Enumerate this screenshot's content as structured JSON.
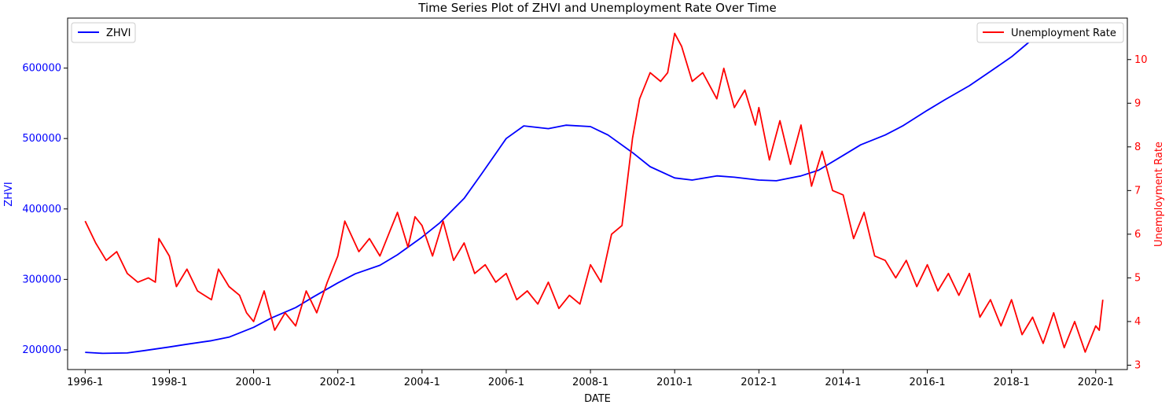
{
  "chart_data": {
    "type": "line",
    "title": "Time Series Plot of ZHVI and Unemployment Rate Over Time",
    "xlabel": "DATE",
    "ylabel_left": "ZHVI",
    "ylabel_right": "Unemployment Rate",
    "x_ticks": [
      "1996-1",
      "1998-1",
      "2000-1",
      "2002-1",
      "2004-1",
      "2006-1",
      "2008-1",
      "2010-1",
      "2012-1",
      "2014-1",
      "2016-1",
      "2018-1",
      "2020-1"
    ],
    "y_left_ticks": [
      "200000",
      "300000",
      "400000",
      "500000",
      "600000"
    ],
    "y_right_ticks": [
      "3",
      "4",
      "5",
      "6",
      "7",
      "8",
      "9",
      "10"
    ],
    "x_range": [
      "1995-08",
      "2020-10"
    ],
    "ylim_left": [
      172000,
      671000
    ],
    "ylim_right": [
      2.9,
      10.95
    ],
    "grid": false,
    "legend_left": "top-left",
    "legend_right": "top-right",
    "colors": {
      "zhvi": "#0000ff",
      "unemployment": "#ff0000"
    },
    "series": [
      {
        "name": "ZHVI",
        "axis": "left",
        "points": [
          [
            "1996-01",
            196500
          ],
          [
            "1996-06",
            195000
          ],
          [
            "1997-01",
            195500
          ],
          [
            "1997-06",
            199000
          ],
          [
            "1998-01",
            204000
          ],
          [
            "1998-06",
            208000
          ],
          [
            "1999-01",
            213000
          ],
          [
            "1999-06",
            218000
          ],
          [
            "2000-01",
            232000
          ],
          [
            "2000-06",
            245000
          ],
          [
            "2001-01",
            260000
          ],
          [
            "2001-06",
            275000
          ],
          [
            "2002-01",
            295000
          ],
          [
            "2002-06",
            308000
          ],
          [
            "2003-01",
            320000
          ],
          [
            "2003-06",
            335000
          ],
          [
            "2004-01",
            360000
          ],
          [
            "2004-06",
            380000
          ],
          [
            "2005-01",
            415000
          ],
          [
            "2005-06",
            450000
          ],
          [
            "2006-01",
            500000
          ],
          [
            "2006-06",
            518000
          ],
          [
            "2007-01",
            514000
          ],
          [
            "2007-06",
            519000
          ],
          [
            "2008-01",
            517000
          ],
          [
            "2008-06",
            505000
          ],
          [
            "2009-01",
            480000
          ],
          [
            "2009-06",
            460000
          ],
          [
            "2010-01",
            444000
          ],
          [
            "2010-06",
            441000
          ],
          [
            "2011-01",
            447000
          ],
          [
            "2011-06",
            445000
          ],
          [
            "2012-01",
            441000
          ],
          [
            "2012-06",
            440000
          ],
          [
            "2013-01",
            447000
          ],
          [
            "2013-06",
            455000
          ],
          [
            "2014-01",
            476000
          ],
          [
            "2014-06",
            491000
          ],
          [
            "2015-01",
            505000
          ],
          [
            "2015-06",
            518000
          ],
          [
            "2016-01",
            540000
          ],
          [
            "2016-06",
            555000
          ],
          [
            "2017-01",
            575000
          ],
          [
            "2017-06",
            592000
          ],
          [
            "2018-01",
            616000
          ],
          [
            "2018-06",
            637000
          ],
          [
            "2019-01",
            655000
          ],
          [
            "2019-06",
            657000
          ],
          [
            "2020-01",
            656000
          ],
          [
            "2020-03",
            657000
          ]
        ]
      },
      {
        "name": "Unemployment Rate",
        "axis": "right",
        "points": [
          [
            "1996-01",
            6.3
          ],
          [
            "1996-04",
            5.8
          ],
          [
            "1996-07",
            5.4
          ],
          [
            "1996-10",
            5.6
          ],
          [
            "1997-01",
            5.1
          ],
          [
            "1997-04",
            4.9
          ],
          [
            "1997-07",
            5.0
          ],
          [
            "1997-09",
            4.9
          ],
          [
            "1997-10",
            5.9
          ],
          [
            "1998-01",
            5.5
          ],
          [
            "1998-03",
            4.8
          ],
          [
            "1998-06",
            5.2
          ],
          [
            "1998-09",
            4.7
          ],
          [
            "1999-01",
            4.5
          ],
          [
            "1999-03",
            5.2
          ],
          [
            "1999-06",
            4.8
          ],
          [
            "1999-09",
            4.6
          ],
          [
            "1999-11",
            4.2
          ],
          [
            "2000-01",
            4.0
          ],
          [
            "2000-04",
            4.7
          ],
          [
            "2000-07",
            3.8
          ],
          [
            "2000-10",
            4.2
          ],
          [
            "2001-01",
            3.9
          ],
          [
            "2001-04",
            4.7
          ],
          [
            "2001-07",
            4.2
          ],
          [
            "2001-10",
            4.9
          ],
          [
            "2002-01",
            5.5
          ],
          [
            "2002-03",
            6.3
          ],
          [
            "2002-07",
            5.6
          ],
          [
            "2002-10",
            5.9
          ],
          [
            "2003-01",
            5.5
          ],
          [
            "2003-04",
            6.1
          ],
          [
            "2003-06",
            6.5
          ],
          [
            "2003-09",
            5.7
          ],
          [
            "2003-11",
            6.4
          ],
          [
            "2004-01",
            6.2
          ],
          [
            "2004-04",
            5.5
          ],
          [
            "2004-07",
            6.3
          ],
          [
            "2004-10",
            5.4
          ],
          [
            "2005-01",
            5.8
          ],
          [
            "2005-04",
            5.1
          ],
          [
            "2005-07",
            5.3
          ],
          [
            "2005-10",
            4.9
          ],
          [
            "2006-01",
            5.1
          ],
          [
            "2006-04",
            4.5
          ],
          [
            "2006-07",
            4.7
          ],
          [
            "2006-10",
            4.4
          ],
          [
            "2007-01",
            4.9
          ],
          [
            "2007-04",
            4.3
          ],
          [
            "2007-07",
            4.6
          ],
          [
            "2007-10",
            4.4
          ],
          [
            "2008-01",
            5.3
          ],
          [
            "2008-04",
            4.9
          ],
          [
            "2008-07",
            6.0
          ],
          [
            "2008-10",
            6.2
          ],
          [
            "2009-01",
            8.2
          ],
          [
            "2009-03",
            9.1
          ],
          [
            "2009-06",
            9.7
          ],
          [
            "2009-09",
            9.5
          ],
          [
            "2009-11",
            9.7
          ],
          [
            "2010-01",
            10.6
          ],
          [
            "2010-03",
            10.3
          ],
          [
            "2010-06",
            9.5
          ],
          [
            "2010-09",
            9.7
          ],
          [
            "2011-01",
            9.1
          ],
          [
            "2011-03",
            9.8
          ],
          [
            "2011-06",
            8.9
          ],
          [
            "2011-09",
            9.3
          ],
          [
            "2011-12",
            8.5
          ],
          [
            "2012-01",
            8.9
          ],
          [
            "2012-04",
            7.7
          ],
          [
            "2012-07",
            8.6
          ],
          [
            "2012-10",
            7.6
          ],
          [
            "2013-01",
            8.5
          ],
          [
            "2013-04",
            7.1
          ],
          [
            "2013-07",
            7.9
          ],
          [
            "2013-10",
            7.0
          ],
          [
            "2014-01",
            6.9
          ],
          [
            "2014-04",
            5.9
          ],
          [
            "2014-07",
            6.5
          ],
          [
            "2014-10",
            5.5
          ],
          [
            "2015-01",
            5.4
          ],
          [
            "2015-04",
            5.0
          ],
          [
            "2015-07",
            5.4
          ],
          [
            "2015-10",
            4.8
          ],
          [
            "2016-01",
            5.3
          ],
          [
            "2016-04",
            4.7
          ],
          [
            "2016-07",
            5.1
          ],
          [
            "2016-10",
            4.6
          ],
          [
            "2017-01",
            5.1
          ],
          [
            "2017-04",
            4.1
          ],
          [
            "2017-07",
            4.5
          ],
          [
            "2017-10",
            3.9
          ],
          [
            "2018-01",
            4.5
          ],
          [
            "2018-04",
            3.7
          ],
          [
            "2018-07",
            4.1
          ],
          [
            "2018-10",
            3.5
          ],
          [
            "2019-01",
            4.2
          ],
          [
            "2019-04",
            3.4
          ],
          [
            "2019-07",
            4.0
          ],
          [
            "2019-10",
            3.3
          ],
          [
            "2020-01",
            3.9
          ],
          [
            "2020-02",
            3.8
          ],
          [
            "2020-03",
            4.5
          ]
        ]
      }
    ]
  }
}
